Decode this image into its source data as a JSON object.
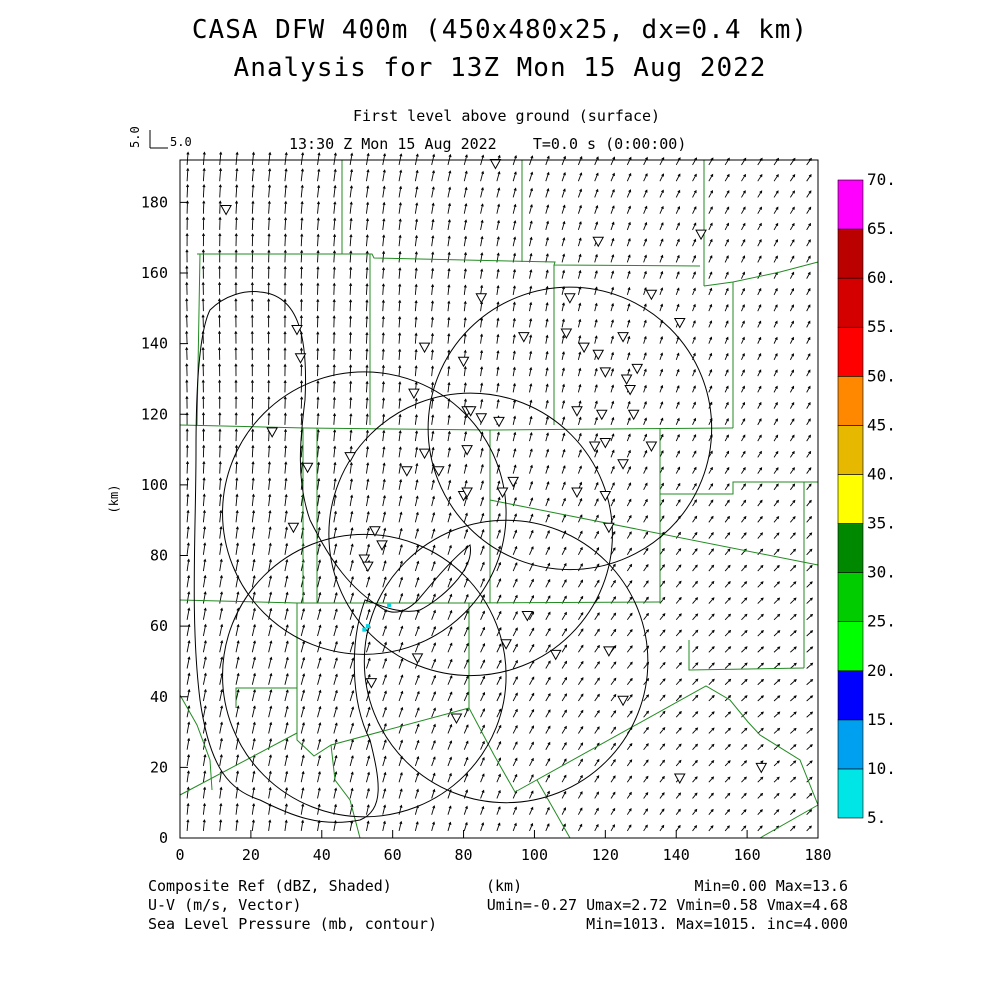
{
  "header": {
    "title_line1": "CASA DFW 400m (450x480x25, dx=0.4 km)",
    "title_line2": "Analysis for 13Z Mon 15 Aug 2022",
    "level": "First level above ground (surface)",
    "valid_time": "13:30 Z Mon 15 Aug 2022    T=0.0 s (0:00:00)",
    "ref_vector_y": "5.0",
    "ref_vector_x": "5.0"
  },
  "footer": {
    "field1": "Composite Ref (dBZ, Shaded)",
    "field2": "U-V (m/s, Vector)",
    "field3": "Sea Level Pressure (mb, contour)",
    "xunit": "(km)",
    "stats1": "Min=0.00 Max=13.6",
    "stats2": "Umin=-0.27 Umax=2.72 Vmin=0.58 Vmax=4.68",
    "stats3": "Min=1013. Max=1015. inc=4.000"
  },
  "colorbar": {
    "levels": [
      "5.",
      "10.",
      "15.",
      "20.",
      "25.",
      "30.",
      "35.",
      "40.",
      "45.",
      "50.",
      "55.",
      "60.",
      "65.",
      "70."
    ],
    "colors": [
      "#00e6e6",
      "#00a0f0",
      "#0000ff",
      "#00ff00",
      "#00cc00",
      "#008800",
      "#ffff00",
      "#e6b800",
      "#ff8800",
      "#ff0000",
      "#d40000",
      "#bb0000",
      "#ff00ff"
    ]
  },
  "chart_data": {
    "type": "vector-field map",
    "xlabel": "(km)",
    "ylabel": "(km)",
    "xlim": [
      0,
      180
    ],
    "ylim": [
      0,
      192
    ],
    "xticks": [
      0,
      20,
      40,
      60,
      80,
      100,
      120,
      140,
      160,
      180
    ],
    "yticks": [
      0,
      20,
      40,
      60,
      80,
      100,
      120,
      140,
      160,
      180
    ],
    "wind_u_range": [
      -0.27,
      2.72
    ],
    "wind_v_range": [
      0.58,
      4.68
    ],
    "reflectivity_range": [
      0.0,
      13.6
    ],
    "slp_range": [
      1013,
      1015
    ],
    "contour_interval": 4.0,
    "radar_rings": [
      {
        "center": [
          52,
          92
        ],
        "radius_km": 40
      },
      {
        "center": [
          110,
          116
        ],
        "radius_km": 40
      },
      {
        "center": [
          82,
          86
        ],
        "radius_km": 40
      },
      {
        "center": [
          52,
          46
        ],
        "radius_km": 40
      },
      {
        "center": [
          92,
          50
        ],
        "radius_km": 40
      }
    ],
    "stations": [
      [
        13,
        178
      ],
      [
        33,
        144
      ],
      [
        34,
        136
      ],
      [
        26,
        115
      ],
      [
        36,
        105
      ],
      [
        32,
        88
      ],
      [
        48,
        108
      ],
      [
        55,
        87
      ],
      [
        57,
        83
      ],
      [
        52,
        79
      ],
      [
        53,
        77
      ],
      [
        66,
        126
      ],
      [
        69,
        139
      ],
      [
        64,
        104
      ],
      [
        69,
        109
      ],
      [
        73,
        104
      ],
      [
        81,
        121
      ],
      [
        82,
        121
      ],
      [
        85,
        119
      ],
      [
        90,
        118
      ],
      [
        81,
        110
      ],
      [
        80,
        135
      ],
      [
        85,
        153
      ],
      [
        97,
        142
      ],
      [
        109,
        143
      ],
      [
        110,
        153
      ],
      [
        114,
        139
      ],
      [
        118,
        137
      ],
      [
        120,
        132
      ],
      [
        125,
        142
      ],
      [
        126,
        130
      ],
      [
        127,
        127
      ],
      [
        129,
        133
      ],
      [
        128,
        120
      ],
      [
        133,
        111
      ],
      [
        133,
        154
      ],
      [
        141,
        146
      ],
      [
        147,
        171
      ],
      [
        118,
        169
      ],
      [
        112,
        121
      ],
      [
        119,
        120
      ],
      [
        117,
        111
      ],
      [
        120,
        112
      ],
      [
        125,
        106
      ],
      [
        80,
        97
      ],
      [
        81,
        98
      ],
      [
        91,
        98
      ],
      [
        94,
        101
      ],
      [
        112,
        98
      ],
      [
        120,
        97
      ],
      [
        121,
        88
      ],
      [
        67,
        51
      ],
      [
        78,
        34
      ],
      [
        54,
        44
      ],
      [
        92,
        55
      ],
      [
        98,
        63
      ],
      [
        106,
        52
      ],
      [
        121,
        53
      ],
      [
        125,
        39
      ],
      [
        141,
        17
      ],
      [
        164,
        20
      ],
      [
        89,
        191
      ]
    ],
    "echo_points": [
      [
        52,
        59
      ],
      [
        53,
        60
      ],
      [
        59,
        66
      ]
    ]
  }
}
